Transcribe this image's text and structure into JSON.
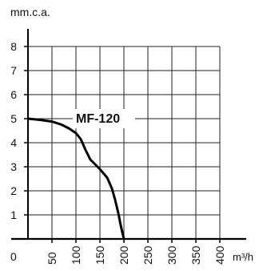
{
  "chart_data": {
    "type": "line",
    "ylabel": "mm.c.a.",
    "xlabel": "m³/h",
    "x_origin_label": "0",
    "xlim": [
      0,
      400
    ],
    "ylim": [
      0,
      8
    ],
    "x_ticks": [
      50,
      100,
      150,
      200,
      250,
      300,
      350,
      400
    ],
    "x_tick_labels": [
      "50",
      "100",
      "150",
      "200",
      "250",
      "300",
      "350",
      "400"
    ],
    "y_ticks": [
      1,
      2,
      3,
      4,
      5,
      6,
      7,
      8
    ],
    "y_tick_labels": [
      "1",
      "2",
      "3",
      "4",
      "5",
      "6",
      "7",
      "8"
    ],
    "grid": true,
    "series": [
      {
        "name": "MF-120",
        "x": [
          0,
          25,
          50,
          70,
          85,
          100,
          110,
          120,
          130,
          150,
          165,
          175,
          182,
          188,
          193,
          197,
          200
        ],
        "y": [
          5.0,
          4.95,
          4.88,
          4.75,
          4.6,
          4.4,
          4.15,
          3.7,
          3.3,
          2.9,
          2.55,
          2.1,
          1.6,
          1.1,
          0.6,
          0.25,
          0
        ]
      }
    ]
  }
}
